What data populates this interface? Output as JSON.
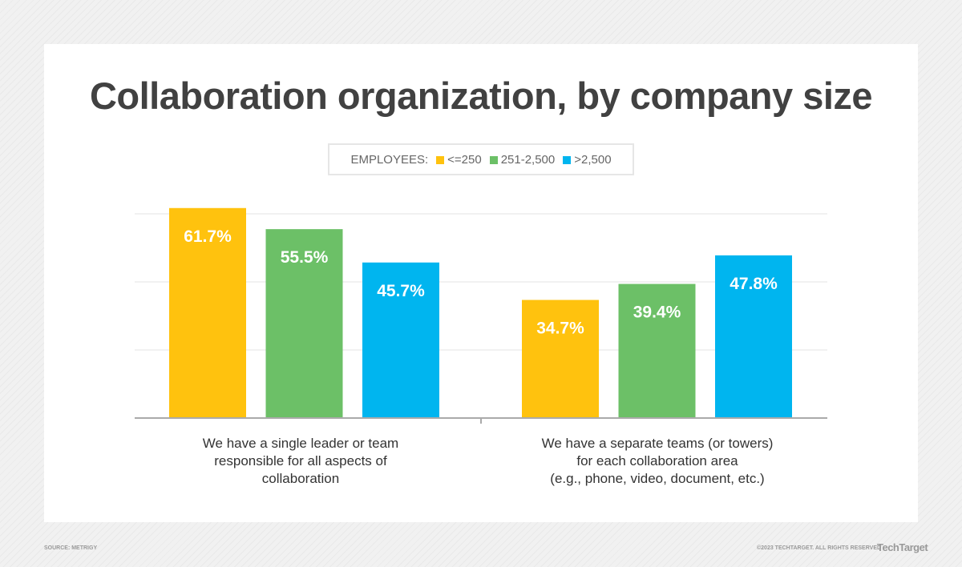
{
  "title": "Collaboration organization, by company size",
  "legend": {
    "label": "EMPLOYEES:",
    "items": [
      {
        "label": "<=250",
        "color": "#ffc20e"
      },
      {
        "label": "251-2,500",
        "color": "#6cc067"
      },
      {
        "label": ">2,500",
        "color": "#00b5ef"
      }
    ]
  },
  "footer": {
    "source": "SOURCE: METRIGY",
    "copyright": "©2023 TECHTARGET. ALL RIGHTS RESERVED",
    "logo": "TechTarget"
  },
  "chart_data": {
    "type": "bar",
    "title": "Collaboration organization, by company size",
    "categories": [
      "We have a single leader or team responsible for all aspects of collaboration",
      "We have a separate teams (or towers) for each collaboration area (e.g., phone, video, document, etc.)"
    ],
    "category_lines": [
      [
        "We have a single leader or team",
        "responsible for all aspects of",
        "collaboration"
      ],
      [
        "We have a separate teams (or towers)",
        "for each collaboration area",
        "(e.g., phone, video, document, etc.)"
      ]
    ],
    "series": [
      {
        "name": "<=250",
        "values": [
          61.7,
          34.7
        ],
        "labels": [
          "61.7%",
          "34.7%"
        ],
        "color": "#ffc20e"
      },
      {
        "name": "251-2,500",
        "values": [
          55.5,
          39.4
        ],
        "labels": [
          "55.5%",
          "39.4%"
        ],
        "color": "#6cc067"
      },
      {
        "name": ">2,500",
        "values": [
          45.7,
          47.8
        ],
        "labels": [
          "45.7%",
          "47.8%"
        ],
        "color": "#00b5ef"
      }
    ],
    "ylim": [
      0,
      60
    ],
    "gridlines": [
      20,
      40,
      60
    ],
    "grid": true,
    "legend_position": "top-center"
  }
}
